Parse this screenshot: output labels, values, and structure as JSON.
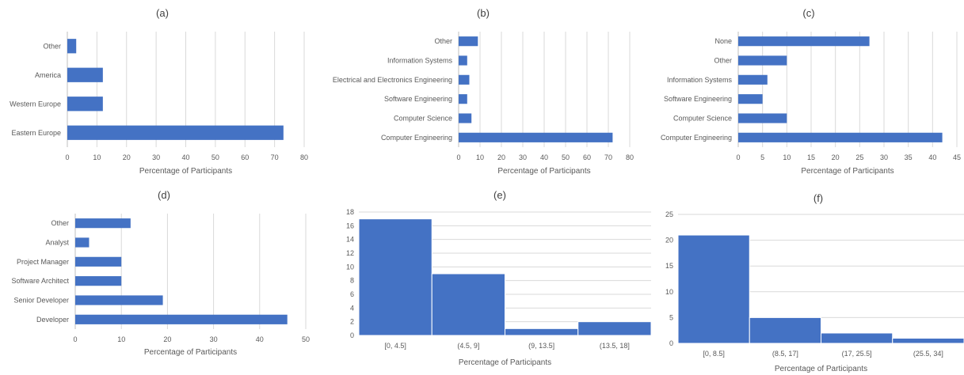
{
  "colors": {
    "bar": "#4472c4",
    "grid": "#d9d9d9",
    "text": "#595959"
  },
  "chart_data": [
    {
      "id": "a",
      "type": "bar",
      "orientation": "horizontal",
      "title": "(a)",
      "categories": [
        "Other",
        "America",
        "Western Europe",
        "Eastern Europe"
      ],
      "values": [
        3,
        12,
        12,
        73
      ],
      "xlim": [
        0,
        80
      ],
      "xticks": [
        0,
        10,
        20,
        30,
        40,
        50,
        60,
        70,
        80
      ],
      "xlabel": "Percentage of Participants",
      "grid": "vertical"
    },
    {
      "id": "b",
      "type": "bar",
      "orientation": "horizontal",
      "title": "(b)",
      "categories": [
        "Other",
        "Information Systems",
        "Electrical and Electronics Engineering",
        "Software Engineering",
        "Computer Science",
        "Computer Engineering"
      ],
      "values": [
        9,
        4,
        5,
        4,
        6,
        72
      ],
      "xlim": [
        0,
        80
      ],
      "xticks": [
        0,
        10,
        20,
        30,
        40,
        50,
        60,
        70,
        80
      ],
      "xlabel": "Percentage of Participants",
      "grid": "vertical"
    },
    {
      "id": "c",
      "type": "bar",
      "orientation": "horizontal",
      "title": "(c)",
      "categories": [
        "None",
        "Other",
        "Information Systems",
        "Software Engineering",
        "Computer Science",
        "Computer Engineering"
      ],
      "values": [
        27,
        10,
        6,
        5,
        10,
        42
      ],
      "xlim": [
        0,
        45
      ],
      "xticks": [
        0,
        5,
        10,
        15,
        20,
        25,
        30,
        35,
        40,
        45
      ],
      "xlabel": "Percentage of Participants",
      "grid": "vertical"
    },
    {
      "id": "d",
      "type": "bar",
      "orientation": "horizontal",
      "title": "(d)",
      "categories": [
        "Other",
        "Analyst",
        "Project Manager",
        "Software Architect",
        "Senior Developer",
        "Developer"
      ],
      "values": [
        12,
        3,
        10,
        10,
        19,
        46
      ],
      "xlim": [
        0,
        50
      ],
      "xticks": [
        0,
        10,
        20,
        30,
        40,
        50
      ],
      "xlabel": "Percentage of Participants",
      "grid": "vertical"
    },
    {
      "id": "e",
      "type": "bar",
      "orientation": "vertical",
      "subtype": "histogram",
      "title": "(e)",
      "categories": [
        "[0, 4.5]",
        "(4.5, 9]",
        "(9, 13.5]",
        "(13.5, 18]"
      ],
      "values": [
        17,
        9,
        1,
        2
      ],
      "ylim": [
        0,
        18
      ],
      "yticks": [
        0,
        2,
        4,
        6,
        8,
        10,
        12,
        14,
        16,
        18
      ],
      "xlabel": "Percentage of Participants",
      "grid": "horizontal"
    },
    {
      "id": "f",
      "type": "bar",
      "orientation": "vertical",
      "subtype": "histogram",
      "title": "(f)",
      "categories": [
        "[0, 8.5]",
        "(8.5, 17]",
        "(17, 25.5]",
        "(25.5, 34]"
      ],
      "values": [
        21,
        5,
        2,
        1
      ],
      "ylim": [
        0,
        25
      ],
      "yticks": [
        0,
        5,
        10,
        15,
        20,
        25
      ],
      "xlabel": "Percentage of Participants",
      "grid": "horizontal"
    }
  ]
}
